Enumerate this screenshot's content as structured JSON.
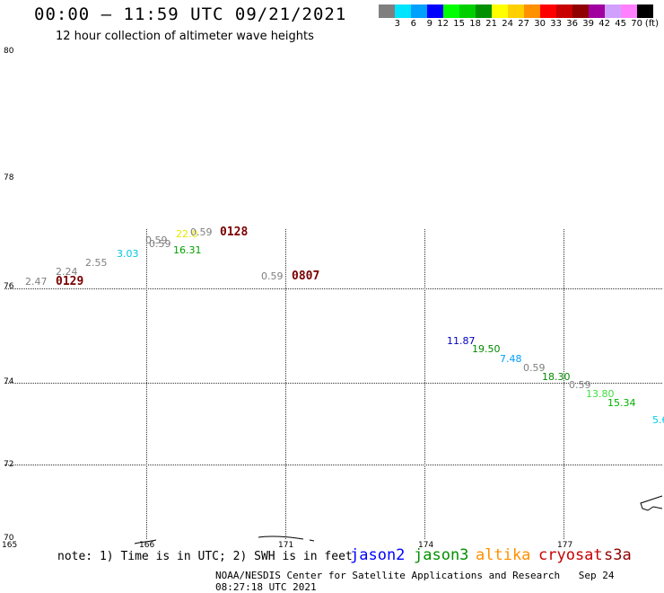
{
  "header": {
    "title": "00:00 – 11:59 UTC 09/21/2021",
    "subtitle": "12 hour collection of altimeter wave heights"
  },
  "legend": {
    "colors": [
      "#7f7f7f",
      "#00e5ff",
      "#00a0ff",
      "#0000ff",
      "#00ff00",
      "#00d000",
      "#009000",
      "#ffff00",
      "#ffd000",
      "#ff9000",
      "#ff0000",
      "#c80000",
      "#900000",
      "#a000a0",
      "#d0a0ff",
      "#ff80ff",
      "#000000"
    ],
    "ticks": [
      "3",
      "6",
      "9",
      "12",
      "15",
      "18",
      "21",
      "24",
      "27",
      "30",
      "33",
      "36",
      "39",
      "42",
      "45",
      "70",
      "(ft)"
    ]
  },
  "axes": {
    "lat_labels": [
      "80",
      "78",
      "76",
      "74",
      "72",
      "70"
    ],
    "lon_labels": [
      "165",
      "166",
      "171",
      "174",
      "177"
    ]
  },
  "observations": [
    {
      "text": "2.47",
      "color": "#7f7f7f"
    },
    {
      "text": "2.24",
      "color": "#7f7f7f"
    },
    {
      "text": "2.55",
      "color": "#7f7f7f"
    },
    {
      "text": "3.03",
      "color": "#00c8e0"
    },
    {
      "text": "0.59",
      "color": "#7f7f7f"
    },
    {
      "text": "0.59",
      "color": "#7f7f7f"
    },
    {
      "text": "22.0",
      "color": "#e8e800"
    },
    {
      "text": "0.59",
      "color": "#7f7f7f"
    },
    {
      "text": "16.31",
      "color": "#00a000"
    },
    {
      "text": "0.59",
      "color": "#7f7f7f"
    },
    {
      "text": "11.87",
      "color": "#0000c0"
    },
    {
      "text": "19.50",
      "color": "#008a00"
    },
    {
      "text": "7.48",
      "color": "#00a0ff"
    },
    {
      "text": "0.59",
      "color": "#7f7f7f"
    },
    {
      "text": "18.30",
      "color": "#008a00"
    },
    {
      "text": "0.59",
      "color": "#7f7f7f"
    },
    {
      "text": "13.80",
      "color": "#40e040"
    },
    {
      "text": "15.34",
      "color": "#00b000"
    },
    {
      "text": "5.6",
      "color": "#00d0e8"
    }
  ],
  "time_labels": [
    "0129",
    "0128",
    "0807"
  ],
  "footer": {
    "note": "note: 1) Time is in UTC; 2) SWH is in feet",
    "satellites": [
      {
        "name": "jason2",
        "color": "#0000ff"
      },
      {
        "name": "jason3",
        "color": "#009000"
      },
      {
        "name": "altika",
        "color": "#ff9000"
      },
      {
        "name": "cryosat",
        "color": "#c80000"
      },
      {
        "name": "s3a",
        "color": "#900000"
      }
    ],
    "credit": "NOAA/NESDIS Center for Satellite Applications and Research",
    "timestamp": "Sep 24 08:27:18 UTC 2021"
  }
}
